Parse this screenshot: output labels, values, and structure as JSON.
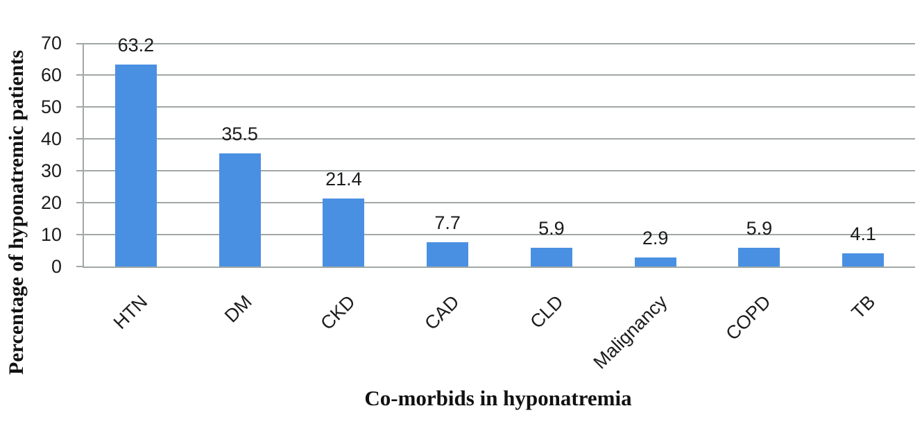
{
  "chart_data": {
    "type": "bar",
    "title": "",
    "categories": [
      "HTN",
      "DM",
      "CKD",
      "CAD",
      "CLD",
      "Malignancy",
      "COPD",
      "TB"
    ],
    "values": [
      63.2,
      35.5,
      21.4,
      7.7,
      5.9,
      2.9,
      5.9,
      4.1
    ],
    "data_labels": [
      "63.2",
      "35.5",
      "21.4",
      "7.7",
      "5.9",
      "2.9",
      "5.9",
      "4.1"
    ],
    "xlabel": "Co-morbids in hyponatremia",
    "ylabel": "Percentage of hyponatremic patients",
    "ylim": [
      0,
      70
    ],
    "yticks": [
      0,
      10,
      20,
      30,
      40,
      50,
      60,
      70
    ],
    "grid": true,
    "legend": "none",
    "bar_color": "#4a90e2",
    "gridline_color": "#a0a7a5",
    "text_color": "#1c1c1c"
  }
}
